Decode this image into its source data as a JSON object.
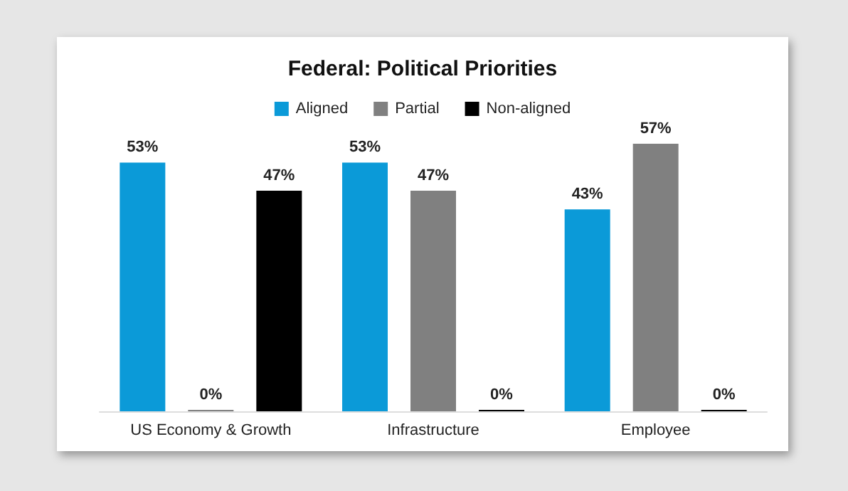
{
  "chart_data": {
    "type": "bar",
    "title": "Federal: Political Priorities",
    "categories": [
      "US Economy & Growth",
      "Infrastructure",
      "Employee"
    ],
    "series": [
      {
        "name": "Aligned",
        "color": "#0b9ad8",
        "values": [
          53,
          53,
          43
        ],
        "value_labels": [
          "53%",
          "53%",
          "43%"
        ]
      },
      {
        "name": "Partial",
        "color": "#808080",
        "values": [
          0,
          47,
          57
        ],
        "value_labels": [
          "0%",
          "47%",
          "57%"
        ]
      },
      {
        "name": "Non-aligned",
        "color": "#000000",
        "values": [
          47,
          0,
          0
        ],
        "value_labels": [
          "47%",
          "0%",
          "0%"
        ]
      }
    ],
    "legend": "top"
  }
}
